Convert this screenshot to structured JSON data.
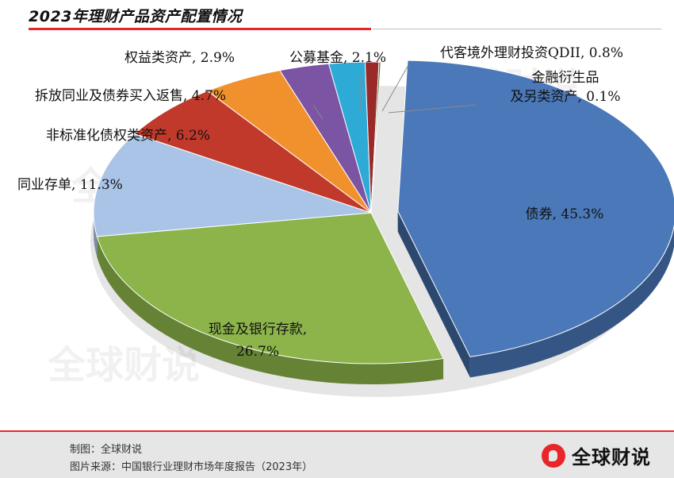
{
  "title": "2023年理财产品资产配置情况",
  "watermark": "全球财说",
  "footer": {
    "maker": "制图：全球财说",
    "source": "图片来源：中国银行业理财市场年度报告（2023年）",
    "brand": "全球财说"
  },
  "chart_data": {
    "type": "pie",
    "title": "2023年理财产品资产配置情况",
    "unit": "%",
    "slices": [
      {
        "name": "债券",
        "value": 45.3,
        "label_lines": [
          "债券, 45.3%"
        ],
        "color": "#4a78b8",
        "exploded": true
      },
      {
        "name": "现金及银行存款",
        "value": 26.7,
        "label_lines": [
          "现金及银行存款,",
          "26.7%"
        ],
        "color": "#8cb44a"
      },
      {
        "name": "同业存单",
        "value": 11.3,
        "label_lines": [
          "同业存单, 11.3%"
        ],
        "color": "#a9c4e6"
      },
      {
        "name": "非标准化债权类资产",
        "value": 6.2,
        "label_lines": [
          "非标准化债权类资产, 6.2%"
        ],
        "color": "#c0392b"
      },
      {
        "name": "拆放同业及债券买入返售",
        "value": 4.7,
        "label_lines": [
          "拆放同业及债券买入返售, 4.7%"
        ],
        "color": "#f0912d"
      },
      {
        "name": "权益类资产",
        "value": 2.9,
        "label_lines": [
          "权益类资产, 2.9%"
        ],
        "color": "#7b54a3"
      },
      {
        "name": "公募基金",
        "value": 2.1,
        "label_lines": [
          "公募基金, 2.1%"
        ],
        "color": "#2eaad6"
      },
      {
        "name": "代客境外理财投资QDII",
        "value": 0.8,
        "label_lines": [
          "代客境外理财投资QDII, 0.8%"
        ],
        "color": "#9a2a2a"
      },
      {
        "name": "金融衍生品及另类资产",
        "value": 0.1,
        "label_lines": [
          "金融衍生品",
          "及另类资产, 0.1%"
        ],
        "color": "#4a6a2a"
      }
    ]
  }
}
